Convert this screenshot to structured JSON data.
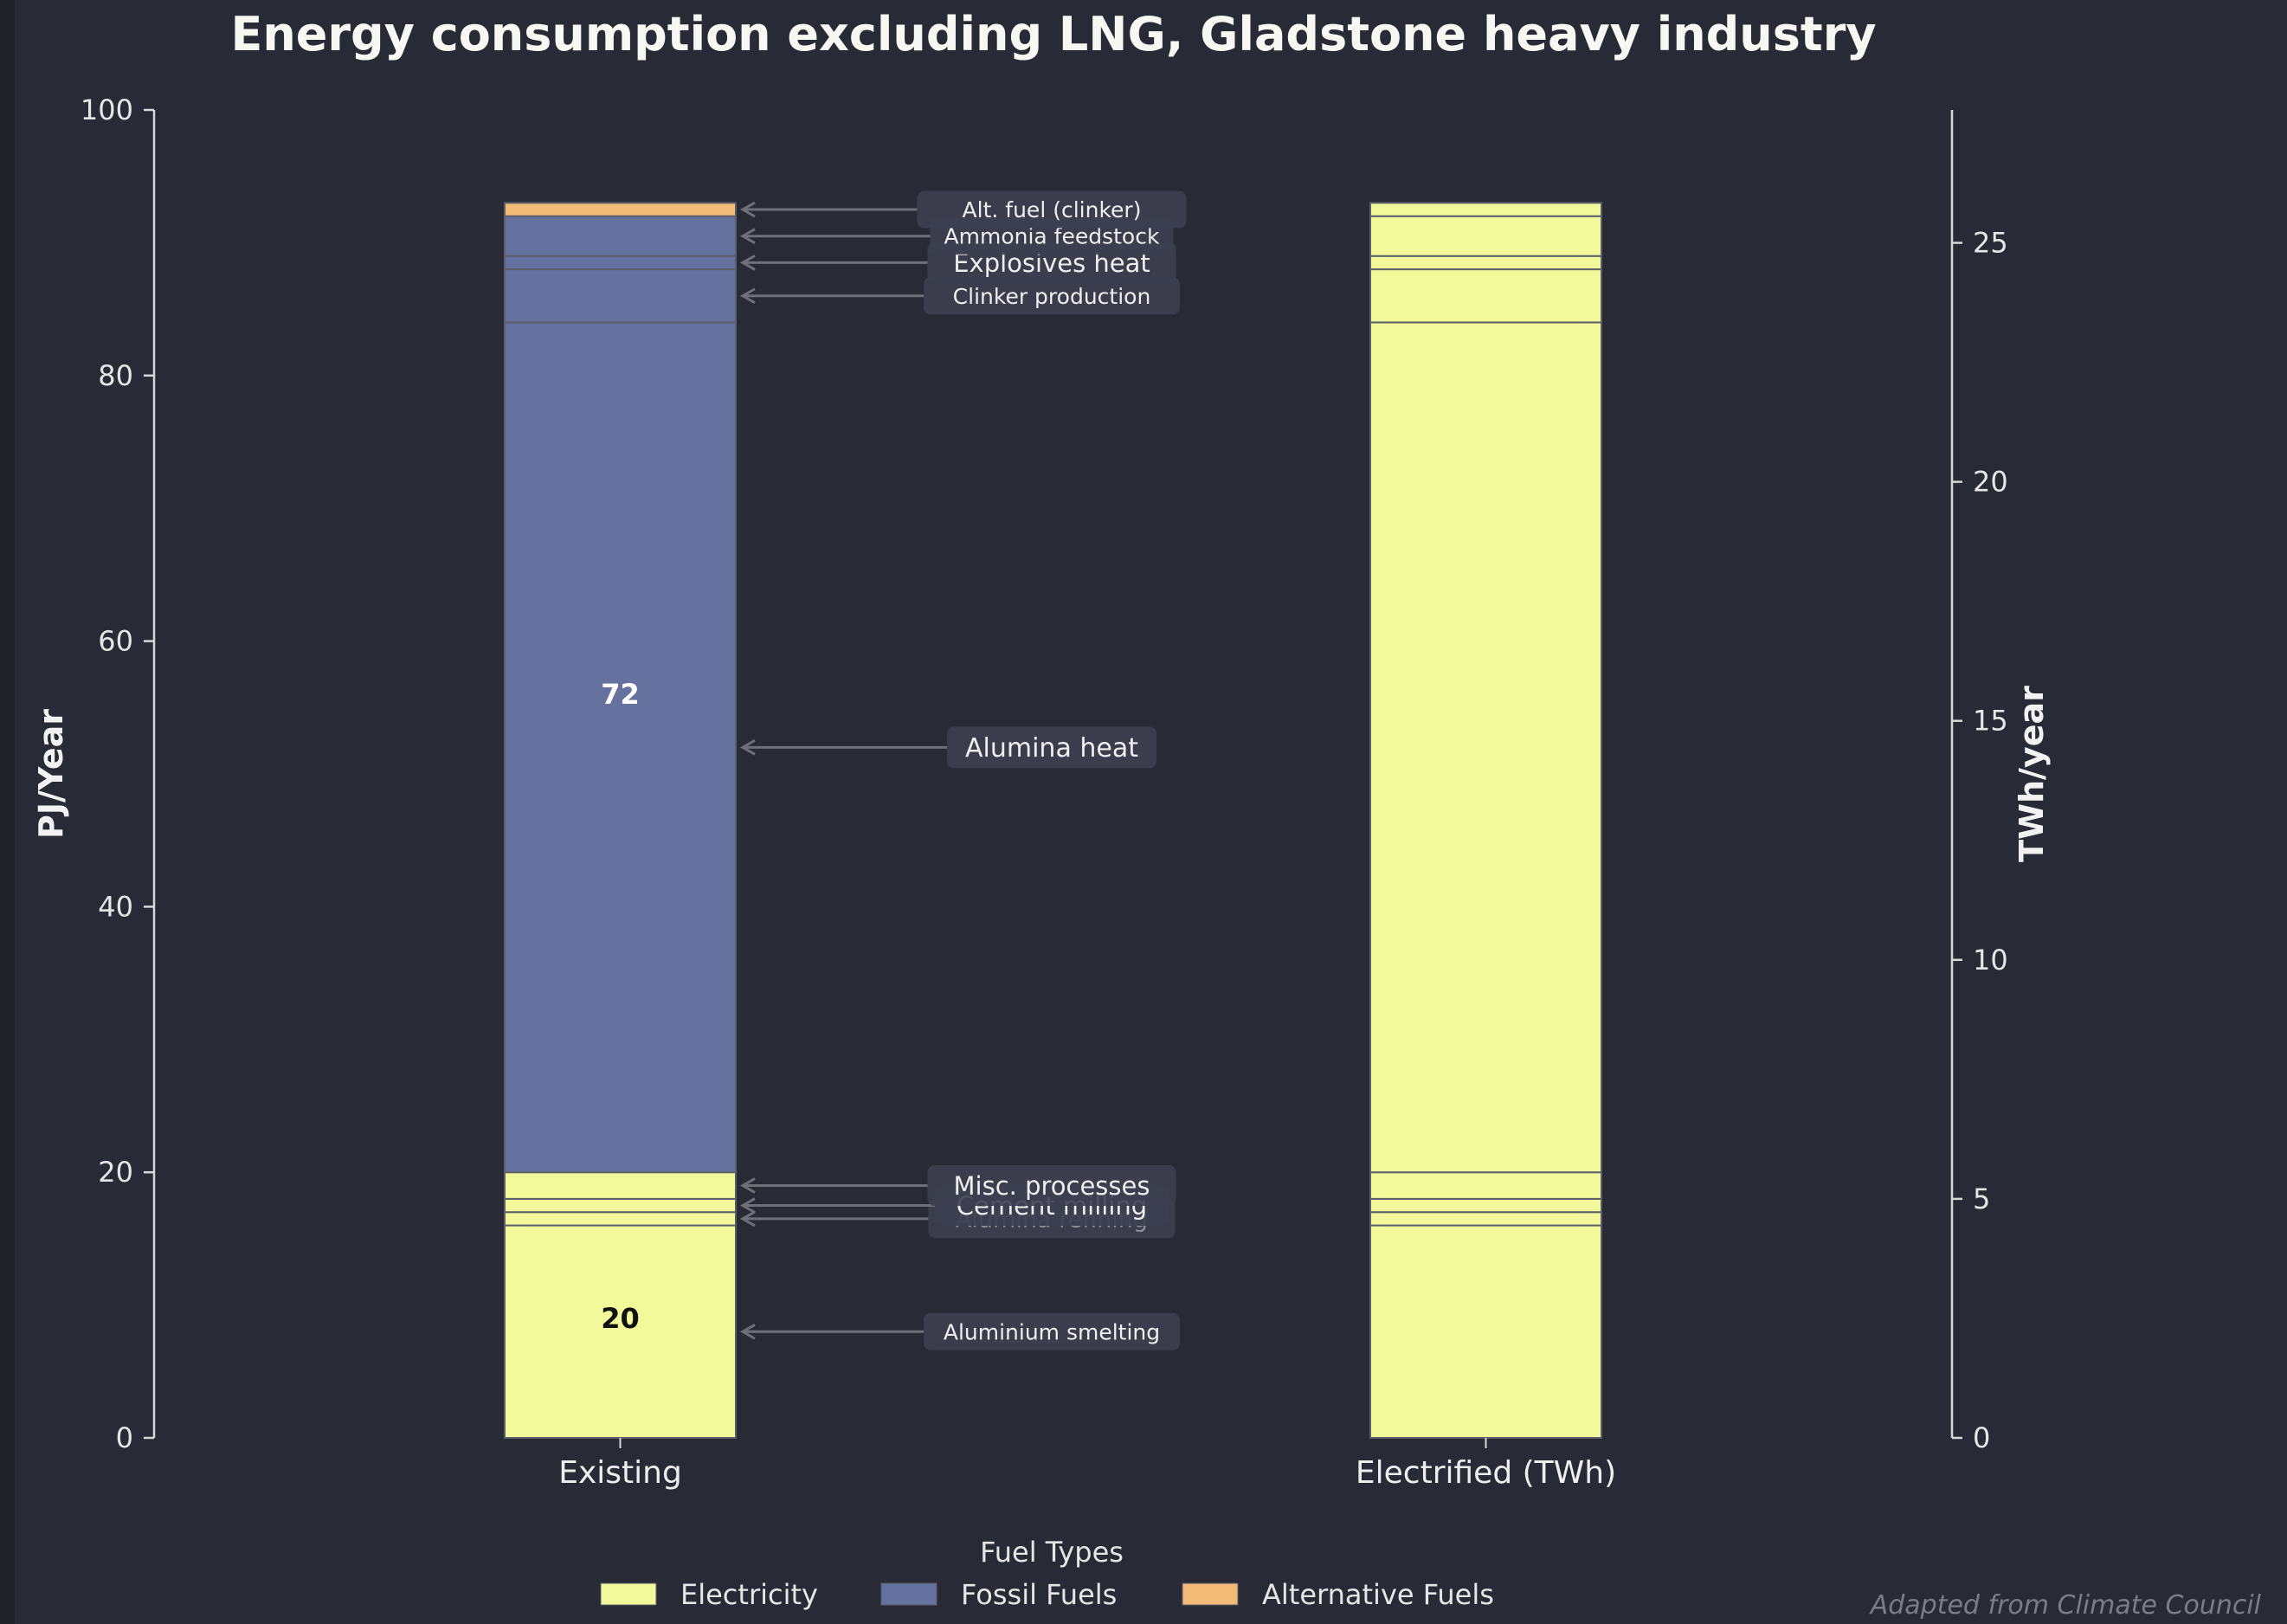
{
  "chart_data": {
    "type": "bar",
    "stacked": true,
    "title": "Energy consumption excluding LNG, Gladstone heavy industry",
    "xlabel": "",
    "ylabel": "PJ/Year",
    "ylabel_right": "TWh/year",
    "ylim": [
      0,
      100
    ],
    "ylim_right": [
      0,
      27.78
    ],
    "yticks": [
      0,
      20,
      40,
      60,
      80,
      100
    ],
    "yticks_right": [
      0,
      5,
      10,
      15,
      20,
      25
    ],
    "grid": false,
    "categories": [
      "Existing",
      "Electrified (TWh)"
    ],
    "fuel_colors": {
      "Electricity": "#f1f99a",
      "Fossil Fuels": "#65729f",
      "Alternative Fuels": "#f3bb78"
    },
    "segments": [
      {
        "name": "Aluminium smelting",
        "value": 16,
        "existing_fuel": "Electricity",
        "electrified_fuel": "Electricity"
      },
      {
        "name": "Alumina refining",
        "value": 1,
        "existing_fuel": "Electricity",
        "electrified_fuel": "Electricity"
      },
      {
        "name": "Cement milling",
        "value": 1,
        "existing_fuel": "Electricity",
        "electrified_fuel": "Electricity"
      },
      {
        "name": "Misc. processes",
        "value": 2,
        "existing_fuel": "Electricity",
        "electrified_fuel": "Electricity"
      },
      {
        "name": "Alumina heat",
        "value": 64,
        "existing_fuel": "Fossil Fuels",
        "electrified_fuel": "Electricity"
      },
      {
        "name": "Clinker production",
        "value": 4,
        "existing_fuel": "Fossil Fuels",
        "electrified_fuel": "Electricity"
      },
      {
        "name": "Explosives heat",
        "value": 1,
        "existing_fuel": "Fossil Fuels",
        "electrified_fuel": "Electricity"
      },
      {
        "name": "Ammonia feedstock",
        "value": 3,
        "existing_fuel": "Fossil Fuels",
        "electrified_fuel": "Electricity"
      },
      {
        "name": "Alt. fuel (clinker)",
        "value": 1,
        "existing_fuel": "Alternative Fuels",
        "electrified_fuel": "Electricity"
      }
    ],
    "totals_labels": [
      {
        "category": "Existing",
        "fuel": "Electricity",
        "text": "20",
        "value": 20
      },
      {
        "category": "Existing",
        "fuel": "Fossil Fuels",
        "text": "72",
        "value": 72
      }
    ],
    "legend": {
      "title": "Fuel Types",
      "placement": "bottom-center",
      "entries": [
        "Electricity",
        "Fossil Fuels",
        "Alternative Fuels"
      ]
    },
    "footnote": "Adapted from Climate Council"
  }
}
